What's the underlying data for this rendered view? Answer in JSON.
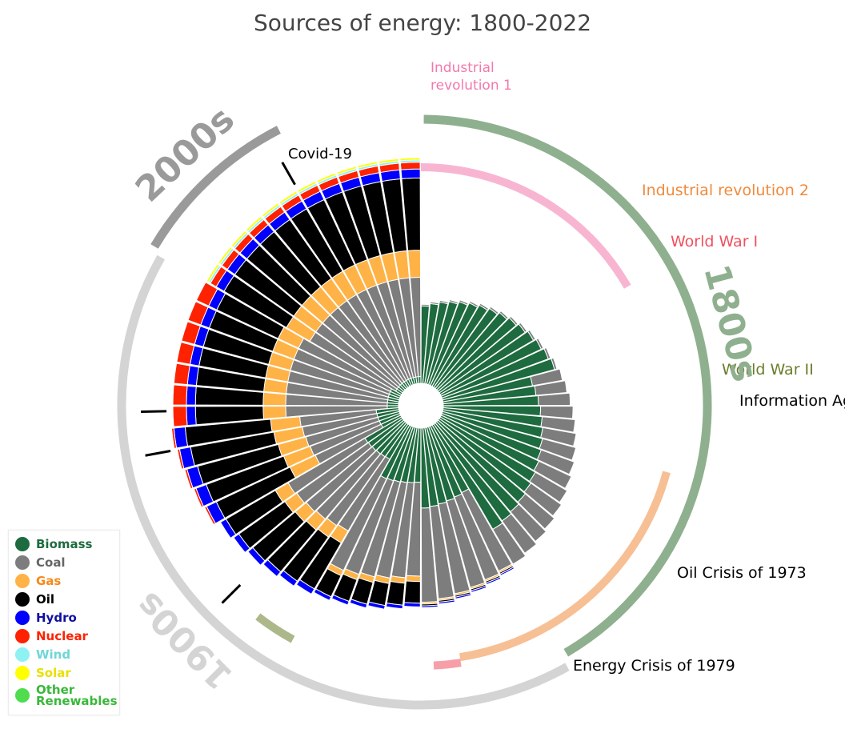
{
  "chart_data": {
    "type": "radial-stacked-bar",
    "title": "Sources of energy: 1800-2022",
    "series": [
      {
        "name": "Biomass",
        "color": "#1e6b3f",
        "label_color": "#1e6b3f"
      },
      {
        "name": "Coal",
        "color": "#7d7d7d",
        "label_color": "#666666"
      },
      {
        "name": "Gas",
        "color": "#ffb347",
        "label_color": "#f5891a"
      },
      {
        "name": "Oil",
        "color": "#000000",
        "label_color": "#000000"
      },
      {
        "name": "Hydro",
        "color": "#0000ff",
        "label_color": "#1010a0"
      },
      {
        "name": "Nuclear",
        "color": "#ff2200",
        "label_color": "#ff2200"
      },
      {
        "name": "Wind",
        "color": "#8ef2f2",
        "label_color": "#6fd6d6"
      },
      {
        "name": "Solar",
        "color": "#ffff00",
        "label_color": "#e8e000"
      },
      {
        "name": "Other Renewables",
        "color": "#4fdc4f",
        "label_color": "#39b839"
      }
    ],
    "decades": [
      {
        "label": "1800s",
        "from": 1800,
        "to": 1900,
        "color": "#8fb08f"
      },
      {
        "label": "1900s",
        "from": 1900,
        "to": 2000,
        "color": "#d4d4d4"
      },
      {
        "label": "2000s",
        "from": 2000,
        "to": 2022,
        "color": "#9a9a9a"
      }
    ],
    "events": [
      {
        "label": "Industrial revolution 1",
        "color": "#f279ab",
        "from": 1800,
        "to": 1840
      },
      {
        "label": "Industrial revolution 2",
        "color": "#f08a3c",
        "from": 1870,
        "to": 1914
      },
      {
        "label": "World War I",
        "color": "#f05060",
        "from": 1914,
        "to": 1918
      },
      {
        "label": "World War  II",
        "color": "#6a7d2a",
        "from": 1939,
        "to": 1945
      },
      {
        "label": "Information Age",
        "color": "#000000",
        "year": 1950
      },
      {
        "label": "Oil Crisis of 1973",
        "color": "#000000",
        "year": 1973
      },
      {
        "label": "Energy Crisis of 1979",
        "color": "#000000",
        "year": 1979
      },
      {
        "label": "Covid-19",
        "color": "#000000",
        "year": 2020
      }
    ],
    "stacks": [
      {
        "from": 1800,
        "to": 1850,
        "share": {
          "Biomass": 0.98,
          "Coal": 0.02,
          "Gas": 0,
          "Oil": 0,
          "Hydro": 0,
          "Nuclear": 0
        }
      },
      {
        "from": 1850,
        "to": 1900,
        "share": {
          "Biomass": 0.75,
          "Coal": 0.25,
          "Gas": 0,
          "Oil": 0,
          "Hydro": 0,
          "Nuclear": 0
        }
      },
      {
        "from": 1900,
        "to": 1920,
        "share": {
          "Biomass": 0.45,
          "Coal": 0.53,
          "Gas": 0.01,
          "Oil": 0.01,
          "Hydro": 0.01,
          "Nuclear": 0
        }
      },
      {
        "from": 1920,
        "to": 1940,
        "share": {
          "Biomass": 0.3,
          "Coal": 0.52,
          "Gas": 0.03,
          "Oil": 0.12,
          "Hydro": 0.02,
          "Nuclear": 0
        }
      },
      {
        "from": 1940,
        "to": 1960,
        "share": {
          "Biomass": 0.2,
          "Coal": 0.42,
          "Gas": 0.07,
          "Oil": 0.27,
          "Hydro": 0.03,
          "Nuclear": 0
        }
      },
      {
        "from": 1960,
        "to": 1975,
        "share": {
          "Biomass": 0.1,
          "Coal": 0.34,
          "Gas": 0.13,
          "Oil": 0.38,
          "Hydro": 0.05,
          "Nuclear": 0.01
        }
      },
      {
        "from": 1975,
        "to": 2000,
        "share": {
          "Biomass": 0.05,
          "Coal": 0.45,
          "Gas": 0.1,
          "Oil": 0.3,
          "Hydro": 0.04,
          "Nuclear": 0.06
        }
      },
      {
        "from": 2000,
        "to": 2022,
        "share": {
          "Biomass": 0.03,
          "Coal": 0.44,
          "Gas": 0.12,
          "Oil": 0.32,
          "Hydro": 0.04,
          "Nuclear": 0.03,
          "Wind": 0.01,
          "Solar": 0.01,
          "Other Renewables": 0.0
        }
      }
    ],
    "legend_position": "bottom-left"
  }
}
